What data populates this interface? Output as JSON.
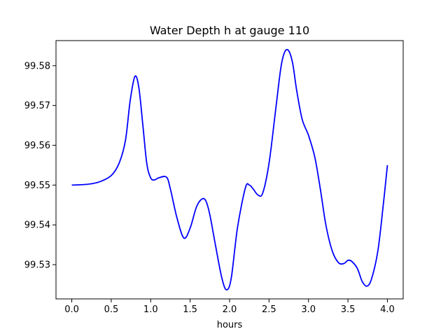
{
  "chart_data": {
    "type": "line",
    "title": "Water Depth h at gauge 110",
    "xlabel": "hours",
    "ylabel": "",
    "xlim": [
      -0.2,
      4.2
    ],
    "ylim": [
      99.5214,
      99.5863
    ],
    "x_ticks": [
      0.0,
      0.5,
      1.0,
      1.5,
      2.0,
      2.5,
      3.0,
      3.5,
      4.0
    ],
    "x_tick_labels": [
      "0.0",
      "0.5",
      "1.0",
      "1.5",
      "2.0",
      "2.5",
      "3.0",
      "3.5",
      "4.0"
    ],
    "y_ticks": [
      99.53,
      99.54,
      99.55,
      99.56,
      99.57,
      99.58
    ],
    "y_tick_labels": [
      "99.53",
      "99.54",
      "99.55",
      "99.56",
      "99.57",
      "99.58"
    ],
    "grid": false,
    "legend": false,
    "series": [
      {
        "color": "#0000ff",
        "x": [
          0.0,
          0.2,
          0.35,
          0.5,
          0.6,
          0.68,
          0.74,
          0.8,
          0.85,
          0.9,
          0.95,
          1.0,
          1.05,
          1.1,
          1.2,
          1.25,
          1.33,
          1.42,
          1.5,
          1.58,
          1.65,
          1.7,
          1.75,
          1.82,
          1.9,
          1.96,
          2.02,
          2.1,
          2.2,
          2.25,
          2.3,
          2.36,
          2.42,
          2.5,
          2.58,
          2.65,
          2.7,
          2.75,
          2.8,
          2.85,
          2.92,
          3.0,
          3.08,
          3.15,
          3.22,
          3.3,
          3.38,
          3.45,
          3.5,
          3.55,
          3.62,
          3.68,
          3.74,
          3.8,
          3.88,
          3.95,
          4.0
        ],
        "y": [
          99.55,
          99.5502,
          99.5508,
          99.5524,
          99.5555,
          99.5612,
          99.5712,
          99.5773,
          99.5745,
          99.5652,
          99.5555,
          99.5518,
          99.5513,
          99.5518,
          99.552,
          99.549,
          99.542,
          99.5367,
          99.5392,
          99.5445,
          99.5465,
          99.546,
          99.5425,
          99.535,
          99.5268,
          99.5237,
          99.5265,
          99.5393,
          99.5493,
          99.55,
          99.549,
          99.5475,
          99.548,
          99.5555,
          99.5683,
          99.5795,
          99.5835,
          99.5837,
          99.5805,
          99.5738,
          99.5665,
          99.5625,
          99.557,
          99.549,
          99.54,
          99.5335,
          99.5305,
          99.5303,
          99.5311,
          99.5308,
          99.529,
          99.5258,
          99.5246,
          99.5265,
          99.5336,
          99.5455,
          99.555
        ]
      }
    ]
  }
}
